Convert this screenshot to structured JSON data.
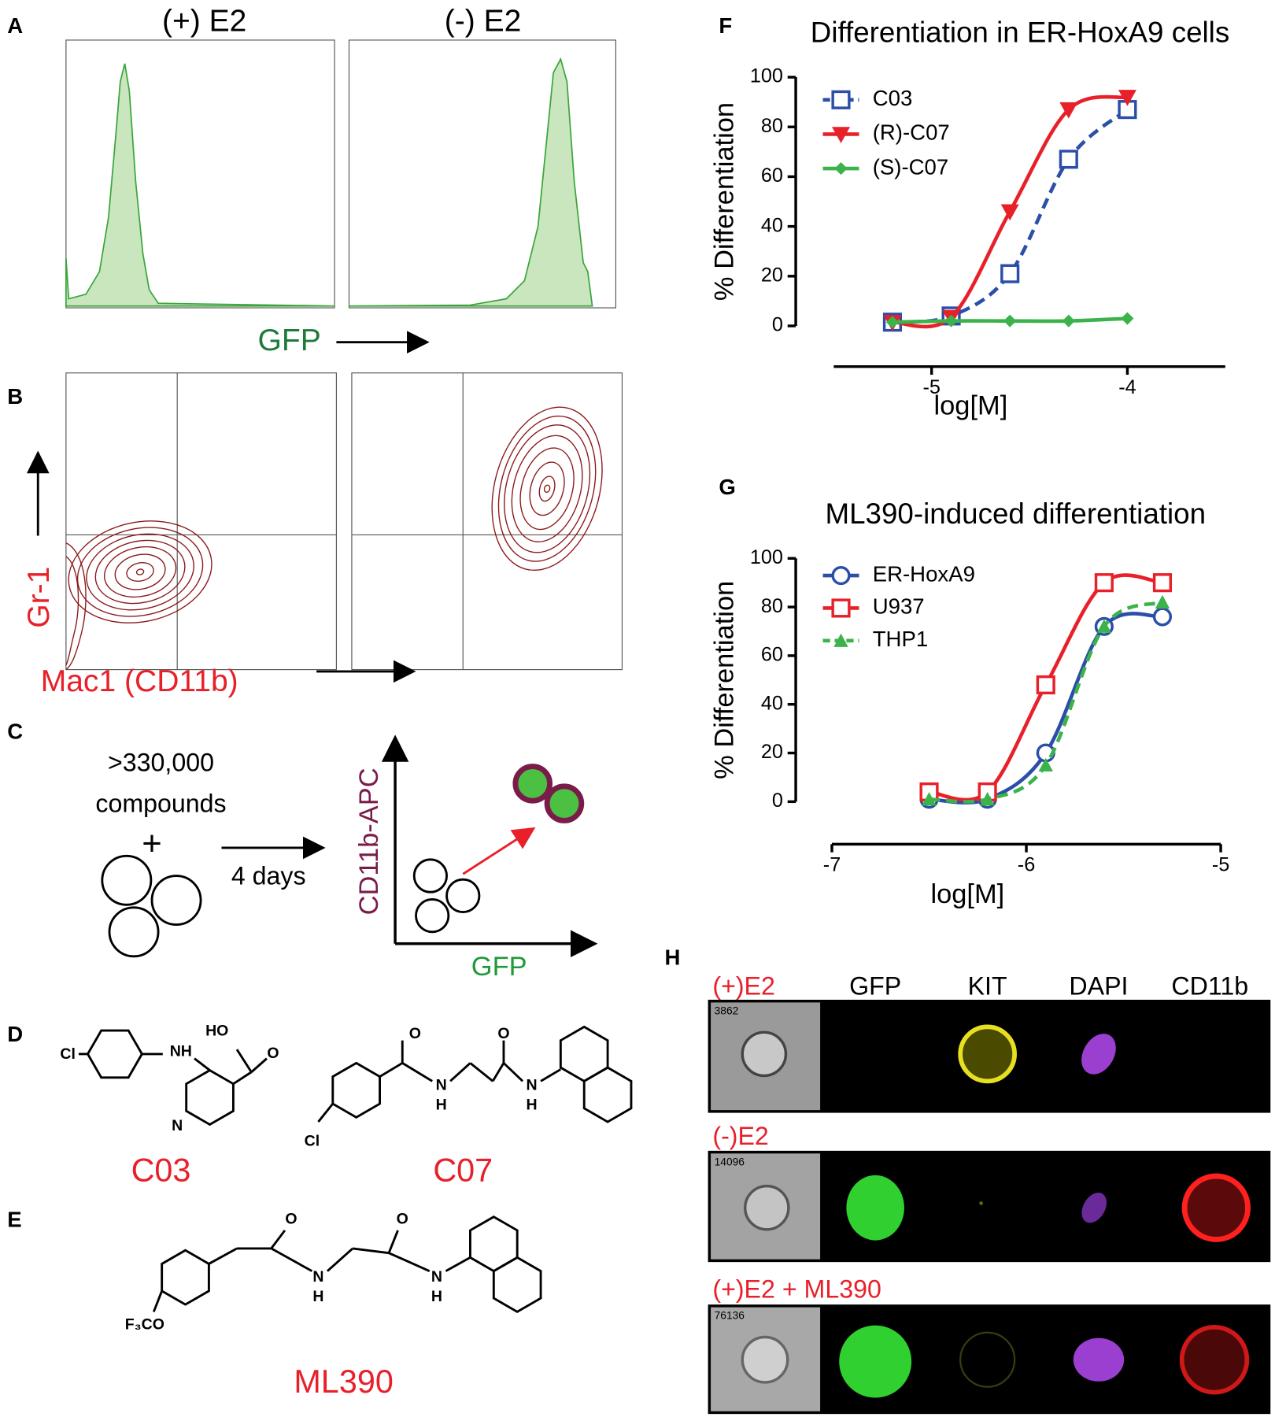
{
  "panel_a": {
    "label": "A",
    "left_title": "(+) E2",
    "right_title": "(-) E2",
    "x_label": "GFP"
  },
  "panel_b": {
    "label": "B",
    "y_label": "Gr-1",
    "x_label": "Mac1 (CD11b)"
  },
  "panel_c": {
    "label": "C",
    "count": ">330,000",
    "noun": "compounds",
    "plus": "+",
    "duration": "4 days",
    "y_label": "CD11b-APC",
    "x_label": "GFP"
  },
  "panel_d": {
    "label": "D",
    "compounds": [
      {
        "name": "C03",
        "atoms": [
          "Cl",
          "NH",
          "HO",
          "O",
          "N"
        ]
      },
      {
        "name": "C07",
        "atoms": [
          "O",
          "O",
          "N",
          "H",
          "N",
          "H",
          "Cl"
        ]
      }
    ]
  },
  "panel_e": {
    "label": "E",
    "name": "ML390",
    "atoms": [
      "O",
      "O",
      "N",
      "H",
      "N",
      "H",
      "F₃CO"
    ]
  },
  "panel_h": {
    "label": "H",
    "columns": [
      "GFP",
      "KIT",
      "DAPI",
      "CD11b"
    ],
    "rows": [
      {
        "condition": "(+)E2",
        "id": "3862"
      },
      {
        "condition": "(-)E2",
        "id": "14096"
      },
      {
        "condition": "(+)E2 + ML390",
        "id": "76136"
      }
    ]
  },
  "chart_data": [
    {
      "panel_label": "F",
      "type": "line",
      "title": "Differentiation in ER-HoxA9 cells",
      "x_label": "log[M]",
      "y_label": "% Differentiation",
      "x": [
        -5.2,
        -4.9,
        -4.6,
        -4.3,
        -4.0
      ],
      "xlim": [
        -5.5,
        -3.5
      ],
      "xticks": [
        -5,
        -4
      ],
      "ylim": [
        0,
        100
      ],
      "yticks": [
        0,
        20,
        40,
        60,
        80,
        100
      ],
      "legend": "top-left",
      "series": [
        {
          "name": "C03",
          "color": "#2b4ea8",
          "marker": "square",
          "dashed": true,
          "values": [
            1.5,
            4,
            21,
            67,
            87
          ]
        },
        {
          "name": "(R)-C07",
          "color": "#e8202a",
          "marker": "triangle-down",
          "dashed": false,
          "values": [
            1.5,
            3.5,
            46,
            87,
            92
          ]
        },
        {
          "name": "(S)-C07",
          "color": "#3cb34a",
          "marker": "diamond",
          "dashed": false,
          "values": [
            1.5,
            2,
            2,
            2,
            3
          ]
        }
      ]
    },
    {
      "panel_label": "G",
      "type": "line",
      "title": "ML390-induced differentiation",
      "x_label": "log[M]",
      "y_label": "% Differentiation",
      "x": [
        -6.5,
        -6.2,
        -5.9,
        -5.6,
        -5.3
      ],
      "xlim": [
        -7,
        -5
      ],
      "xticks": [
        -7,
        -6,
        -5
      ],
      "ylim": [
        0,
        100
      ],
      "yticks": [
        0,
        20,
        40,
        60,
        80,
        100
      ],
      "legend": "top-left",
      "series": [
        {
          "name": "ER-HoxA9",
          "color": "#2b4ea8",
          "marker": "circle",
          "dashed": false,
          "values": [
            1,
            1,
            20,
            72,
            76
          ]
        },
        {
          "name": "U937",
          "color": "#e8202a",
          "marker": "square",
          "dashed": false,
          "values": [
            4,
            4,
            48,
            90,
            90
          ]
        },
        {
          "name": "THP1",
          "color": "#3cb34a",
          "marker": "triangle-up",
          "dashed": true,
          "values": [
            1,
            1,
            15,
            72,
            82
          ]
        }
      ]
    }
  ]
}
